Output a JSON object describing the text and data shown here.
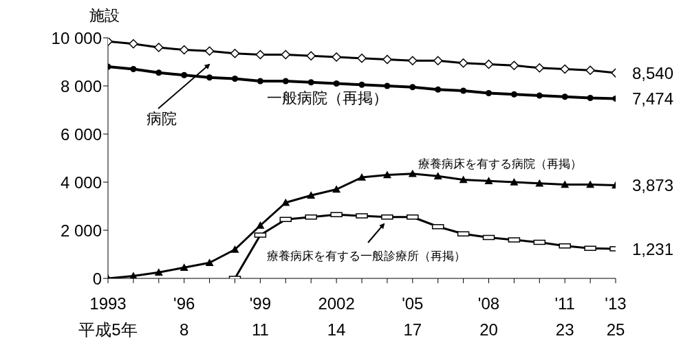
{
  "chart_data": {
    "type": "line",
    "ylabel": "施設",
    "categories": [
      "1993\n平成5年",
      null,
      null,
      "'96\n8",
      null,
      null,
      "'99\n11",
      null,
      null,
      "2002\n14",
      null,
      null,
      "'05\n17",
      null,
      null,
      "'08\n20",
      null,
      null,
      "'11\n23",
      null,
      "'13\n25"
    ],
    "ylim": [
      0,
      10000
    ],
    "yticks": [
      {
        "value": 0,
        "label": "0"
      },
      {
        "value": 2000,
        "label": "2 000"
      },
      {
        "value": 4000,
        "label": "4 000"
      },
      {
        "value": 6000,
        "label": "6 000"
      },
      {
        "value": 8000,
        "label": "8 000"
      },
      {
        "value": 10000,
        "label": "10 000"
      }
    ],
    "series": [
      {
        "name": "病院",
        "color": "#000000",
        "marker": "diamond",
        "values": [
          9850,
          9750,
          9600,
          9500,
          9450,
          9350,
          9300,
          9300,
          9250,
          9200,
          9150,
          9100,
          9050,
          9050,
          8950,
          8900,
          8850,
          8750,
          8700,
          8650,
          8540
        ],
        "value_labels": [
          null,
          null,
          null,
          null,
          null,
          null,
          null,
          null,
          null,
          null,
          null,
          null,
          null,
          null,
          null,
          null,
          null,
          null,
          null,
          null,
          "8,540"
        ]
      },
      {
        "name": "一般病院（再掲）",
        "color": "#000000",
        "marker": "circle",
        "values": [
          8800,
          8700,
          8550,
          8450,
          8350,
          8300,
          8200,
          8200,
          8150,
          8100,
          8050,
          8000,
          7950,
          7850,
          7800,
          7700,
          7650,
          7600,
          7550,
          7500,
          7474
        ],
        "value_labels": [
          null,
          null,
          null,
          null,
          null,
          null,
          null,
          null,
          null,
          null,
          null,
          null,
          null,
          null,
          null,
          null,
          null,
          null,
          null,
          null,
          "7,474"
        ]
      },
      {
        "name": "療養病床を有する病院（再掲）",
        "color": "#000000",
        "marker": "triangle",
        "values": [
          0,
          100,
          250,
          450,
          650,
          1200,
          2200,
          3150,
          3450,
          3700,
          4200,
          4300,
          4350,
          4250,
          4100,
          4050,
          4000,
          3950,
          3900,
          3900,
          3873
        ],
        "value_labels": [
          null,
          null,
          null,
          null,
          null,
          null,
          null,
          null,
          null,
          null,
          null,
          null,
          null,
          null,
          null,
          null,
          null,
          null,
          null,
          null,
          "3,873"
        ]
      },
      {
        "name": "療養病床を有する一般診療所（再掲）",
        "color": "#000000",
        "marker": "square",
        "values": [
          null,
          null,
          null,
          null,
          null,
          0,
          1800,
          2450,
          2550,
          2650,
          2600,
          2550,
          2550,
          2150,
          1850,
          1700,
          1600,
          1500,
          1350,
          1250,
          1231
        ],
        "value_labels": [
          null,
          null,
          null,
          null,
          null,
          null,
          null,
          null,
          null,
          null,
          null,
          null,
          null,
          null,
          null,
          null,
          null,
          null,
          null,
          null,
          "1,231"
        ]
      }
    ]
  }
}
